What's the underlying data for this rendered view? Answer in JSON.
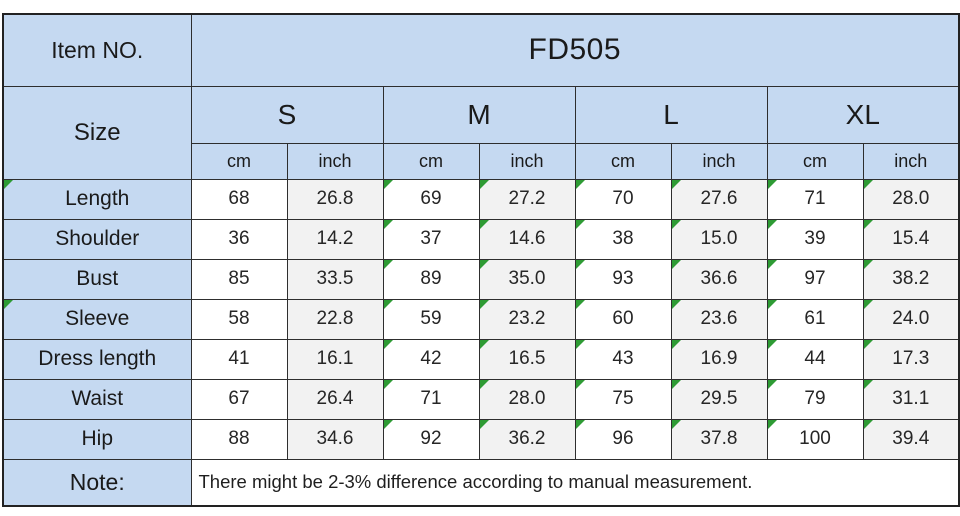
{
  "chart_data": {
    "type": "table",
    "item_no": {
      "label": "Item NO.",
      "value": "FD505"
    },
    "size_header": {
      "label": "Size",
      "sizes": [
        "S",
        "M",
        "L",
        "XL"
      ],
      "units": [
        "cm",
        "inch"
      ]
    },
    "columns": [
      "S cm",
      "S inch",
      "M cm",
      "M inch",
      "L cm",
      "L inch",
      "XL cm",
      "XL inch"
    ],
    "measurements": [
      {
        "label": "Length",
        "label_flag": true,
        "values": [
          "68",
          "26.8",
          "69",
          "27.2",
          "70",
          "27.6",
          "71",
          "28.0"
        ]
      },
      {
        "label": "Shoulder",
        "label_flag": false,
        "values": [
          "36",
          "14.2",
          "37",
          "14.6",
          "38",
          "15.0",
          "39",
          "15.4"
        ]
      },
      {
        "label": "Bust",
        "label_flag": false,
        "values": [
          "85",
          "33.5",
          "89",
          "35.0",
          "93",
          "36.6",
          "97",
          "38.2"
        ]
      },
      {
        "label": "Sleeve",
        "label_flag": true,
        "values": [
          "58",
          "22.8",
          "59",
          "23.2",
          "60",
          "23.6",
          "61",
          "24.0"
        ]
      },
      {
        "label": "Dress length",
        "label_flag": false,
        "values": [
          "41",
          "16.1",
          "42",
          "16.5",
          "43",
          "16.9",
          "44",
          "17.3"
        ]
      },
      {
        "label": "Waist",
        "label_flag": false,
        "values": [
          "67",
          "26.4",
          "71",
          "28.0",
          "75",
          "29.5",
          "79",
          "31.1"
        ]
      },
      {
        "label": "Hip",
        "label_flag": false,
        "values": [
          "88",
          "34.6",
          "92",
          "36.2",
          "96",
          "37.8",
          "100",
          "39.4"
        ]
      }
    ],
    "flag_value_columns": [
      2,
      3,
      4,
      5,
      6,
      7
    ],
    "note": {
      "label": "Note:",
      "text": "There might be 2-3% difference according to manual measurement."
    },
    "colors": {
      "header_bg": "#C5D9F1",
      "cm_cell_bg": "#FFFFFF",
      "inch_cell_bg": "#F2F2F2",
      "border": "#2E2E2E",
      "flag_green": "#2E9B34",
      "text": "#1A1A1A"
    }
  }
}
